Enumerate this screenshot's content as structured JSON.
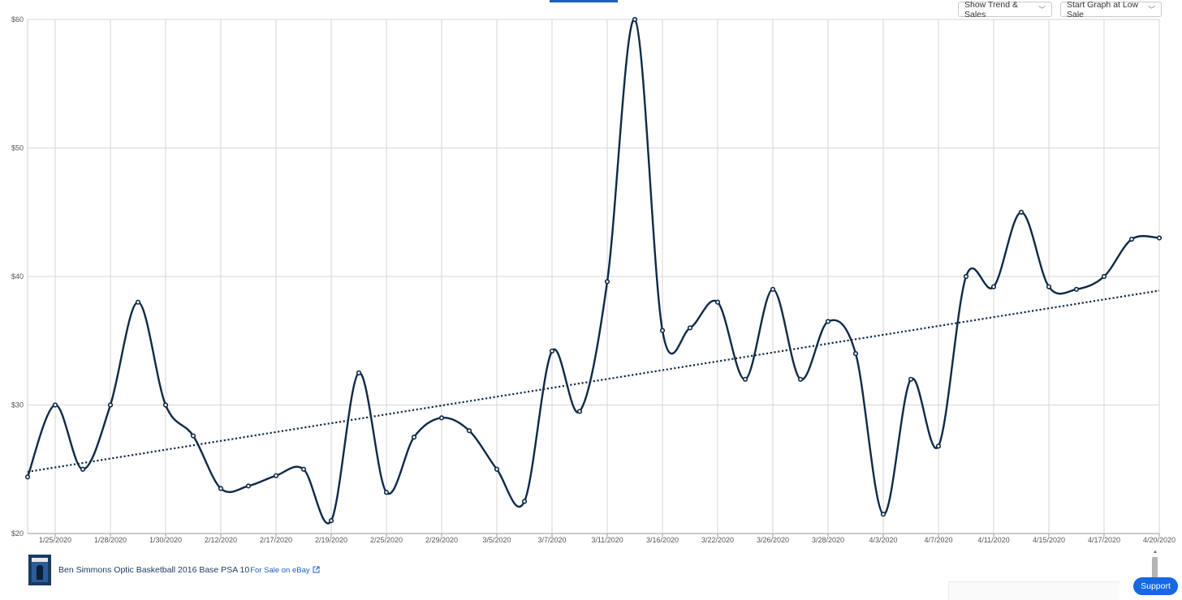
{
  "controls": {
    "trend_dropdown": "Show Trend & Sales",
    "start_dropdown": "Start Graph at Low Sale",
    "chevron": "﹀"
  },
  "product": {
    "title": "Ben Simmons Optic Basketball 2016 Base PSA 10",
    "ebay_link": "For Sale on eBay",
    "ebay_icon": "external-link-icon"
  },
  "support_button": "Support",
  "colors": {
    "line": "#0e2a47",
    "grid": "#d6d6d6",
    "accent": "#1668e3"
  },
  "chart_data": {
    "type": "line",
    "smooth": true,
    "grid": true,
    "ylim": [
      20,
      60
    ],
    "y_ticks": [
      "$20",
      "$30",
      "$40",
      "$50",
      "$60"
    ],
    "y_tick_values": [
      20,
      30,
      40,
      50,
      60
    ],
    "x_tick_labels": [
      "1/25/2020",
      "1/28/2020",
      "1/30/2020",
      "2/12/2020",
      "2/17/2020",
      "2/19/2020",
      "2/25/2020",
      "2/29/2020",
      "3/5/2020",
      "3/7/2020",
      "3/11/2020",
      "3/16/2020",
      "3/22/2020",
      "3/26/2020",
      "3/28/2020",
      "4/3/2020",
      "4/7/2020",
      "4/11/2020",
      "4/15/2020",
      "4/17/2020",
      "4/20/2020"
    ],
    "sales": [
      24.4,
      30,
      25,
      30,
      38,
      30,
      27.6,
      23.5,
      23.7,
      24.5,
      25,
      21,
      32.5,
      23.2,
      27.5,
      29,
      28,
      25,
      22.5,
      34.2,
      29.5,
      39.6,
      60,
      35.8,
      36,
      38,
      32,
      39,
      32,
      36.5,
      34,
      21.5,
      32,
      26.8,
      40,
      39.2,
      45,
      39.2,
      39,
      40,
      42.9,
      43
    ],
    "trend": {
      "start": 24.8,
      "end": 38.9
    }
  }
}
